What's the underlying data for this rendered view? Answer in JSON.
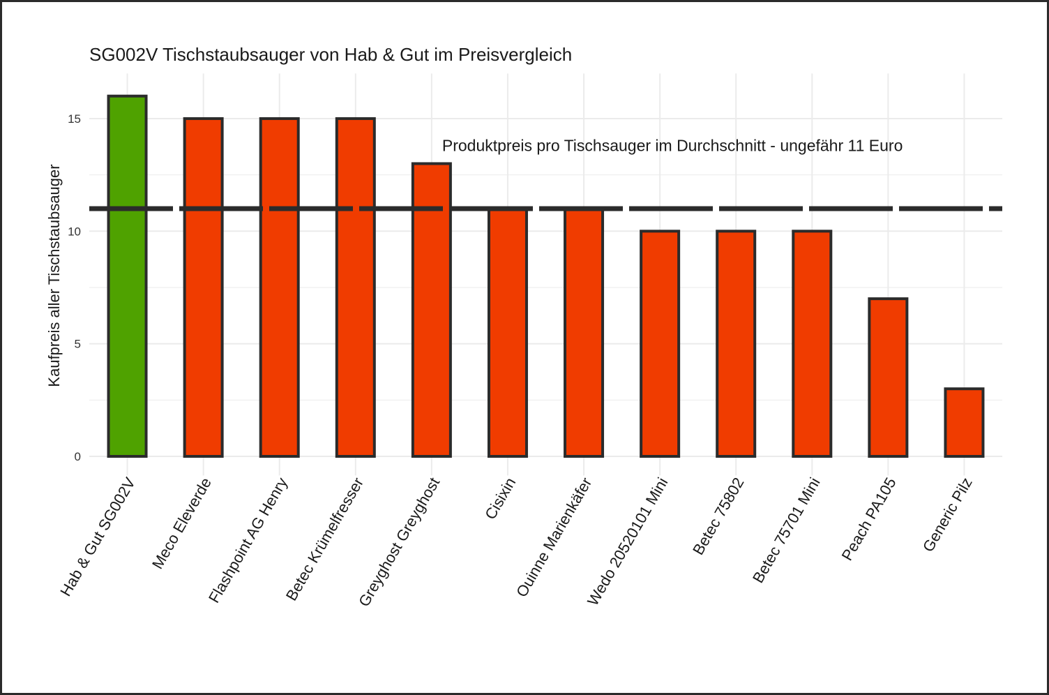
{
  "chart_data": {
    "type": "bar",
    "title": "SG002V Tischstaubsauger von Hab & Gut im Preisvergleich",
    "xlabel": "",
    "ylabel": "Kaufpreis aller Tischstaubsauger",
    "categories": [
      "Hab & Gut SG002V",
      "Meco Eleverde",
      "Flashpoint AG Henry",
      "Betec Krümelfresser",
      "Greyghost Greyghost",
      "Cisixin",
      "Ouinne Marienkäfer",
      "Wedo 20520101 Mini",
      "Betec 75802",
      "Betec 75701 Mini",
      "Peach PA105",
      "Generic Pilz"
    ],
    "values": [
      16,
      15,
      15,
      15,
      13,
      11,
      11,
      10,
      10,
      10,
      7,
      3
    ],
    "highlight_index": 0,
    "colors": {
      "highlight": "#4fa200",
      "default": "#f03c00",
      "outline": "#2b2b2b",
      "grid": "#ebebeb"
    },
    "ylim": [
      -0.85,
      17
    ],
    "yticks": [
      0,
      5,
      10,
      15
    ],
    "grid": true,
    "reference_line": {
      "value": 11,
      "style": "dashed"
    },
    "annotation": {
      "text": "Produktpreis pro Tischsauger im Durchschnitt - ungefähr 11 Euro",
      "x_category": "Greyghost Greyghost",
      "y": 13.8
    }
  }
}
